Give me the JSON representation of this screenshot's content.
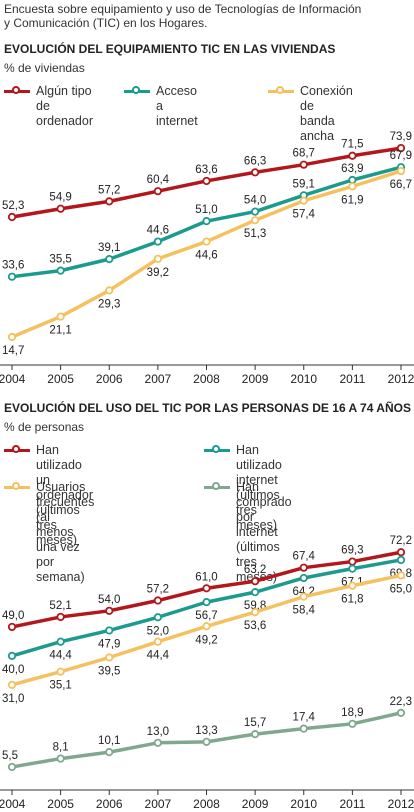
{
  "intro": "Encuesta sobre equipamiento y uso de Tecnologías de Información\ny Comunicación (TIC) en los Hogares.",
  "colors": {
    "red": "#b3161b",
    "teal": "#1b9a8e",
    "orange": "#f5c15e",
    "gray_green": "#7fa88e"
  },
  "chart_data": [
    {
      "type": "line",
      "title": "EVOLUCIÓN DEL EQUIPAMIENTO TIC EN LAS VIVIENDAS",
      "ylabel": "% de viviendas",
      "x": [
        "2004",
        "2005",
        "2006",
        "2007",
        "2008",
        "2009",
        "2010",
        "2011",
        "2012"
      ],
      "ylim": [
        10,
        78
      ],
      "grid": false,
      "legend_position": "top",
      "series": [
        {
          "name": "Algún tipo\nde ordenador",
          "color": "#b3161b",
          "values": [
            52.3,
            54.9,
            57.2,
            60.4,
            63.6,
            66.3,
            68.7,
            71.5,
            73.9
          ],
          "labels": [
            "52,3",
            "54,9",
            "57,2",
            "60,4",
            "63,6",
            "66,3",
            "68,7",
            "71,5",
            "73,9"
          ]
        },
        {
          "name": "Acceso\na internet",
          "color": "#1b9a8e",
          "values": [
            33.6,
            35.5,
            39.1,
            44.6,
            51.0,
            54.0,
            59.1,
            63.9,
            67.9
          ],
          "labels": [
            "33,6",
            "35,5",
            "39,1",
            "44,6",
            "51,0",
            "54,0",
            "59,1",
            "63,9",
            "67,9"
          ]
        },
        {
          "name": "Conexión de\nbanda ancha",
          "color": "#f5c15e",
          "values": [
            14.7,
            21.1,
            29.3,
            39.2,
            44.6,
            51.3,
            57.4,
            61.9,
            66.7
          ],
          "labels": [
            "14,7",
            "21,1",
            "29,3",
            "39,2",
            "44,6",
            "51,3",
            "57,4",
            "61,9",
            "66,7"
          ]
        }
      ]
    },
    {
      "type": "line",
      "title": "EVOLUCIÓN DEL USO DEL TIC POR LAS PERSONAS DE 16 A 74 AÑOS",
      "ylabel": "% de personas",
      "x": [
        "2004",
        "2005",
        "2006",
        "2007",
        "2008",
        "2009",
        "2010",
        "2011",
        "2012"
      ],
      "ylim": [
        3,
        76
      ],
      "grid": false,
      "legend_position": "top",
      "series": [
        {
          "name": "Han utilizado un ordenador\n(últimos tres meses)",
          "color": "#b3161b",
          "values": [
            49.0,
            52.1,
            54.0,
            57.2,
            61.0,
            63.2,
            67.4,
            69.3,
            72.2
          ],
          "labels": [
            "49,0",
            "52,1",
            "54,0",
            "57,2",
            "61,0",
            "63,2",
            "67,4",
            "69,3",
            "72,2"
          ]
        },
        {
          "name": "Han utilizado internet\n(últimos tres meses)",
          "color": "#1b9a8e",
          "values": [
            40.0,
            44.4,
            47.9,
            52.0,
            56.7,
            59.8,
            64.2,
            67.1,
            69.8
          ],
          "labels": [
            "40,0",
            "44,4",
            "47,9",
            "52,0",
            "56,7",
            "59,8",
            "64,2",
            "67,1",
            "69,8"
          ]
        },
        {
          "name": "Usuarios frecuentes (al\nmenos una vez por semana)",
          "color": "#f5c15e",
          "values": [
            31.0,
            35.1,
            39.5,
            44.4,
            49.2,
            53.6,
            58.4,
            61.8,
            65.0
          ],
          "labels": [
            "31,0",
            "35,1",
            "39,5",
            "44,4",
            "49,2",
            "53,6",
            "58,4",
            "61,8",
            "65,0"
          ]
        },
        {
          "name": "Han comprado por internet\n(últimos tres meses)",
          "color": "#7fa88e",
          "values": [
            5.5,
            8.1,
            10.1,
            13.0,
            13.3,
            15.7,
            17.4,
            18.9,
            22.3
          ],
          "labels": [
            "5,5",
            "8,1",
            "10,1",
            "13,0",
            "13,3",
            "15,7",
            "17,4",
            "18,9",
            "22,3"
          ]
        }
      ]
    }
  ]
}
